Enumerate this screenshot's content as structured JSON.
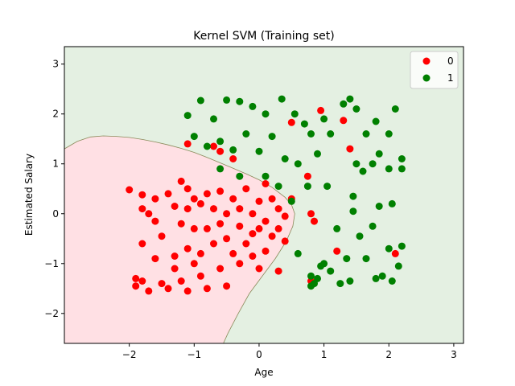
{
  "chart_data": {
    "type": "scatter",
    "title": "Kernel SVM (Training set)",
    "xlabel": "Age",
    "ylabel": "Estimated Salary",
    "xlim": [
      -3.0,
      3.15
    ],
    "ylim": [
      -2.6,
      3.35
    ],
    "xticks": [
      -2,
      -1,
      0,
      1,
      2,
      3
    ],
    "yticks": [
      -2,
      -1,
      0,
      1,
      2,
      3
    ],
    "xtick_labels": [
      "−2",
      "−1",
      "0",
      "1",
      "2",
      "3"
    ],
    "ytick_labels": [
      "−2",
      "−1",
      "0",
      "1",
      "2",
      "3"
    ],
    "grid": false,
    "legend_position": "top-right",
    "region_colors": {
      "class0": "#ffe0e4",
      "class1": "#e4f0e2",
      "boundary": "#8a8a5a"
    },
    "decision_boundary": [
      [
        -3.0,
        1.3
      ],
      [
        -2.8,
        1.45
      ],
      [
        -2.6,
        1.54
      ],
      [
        -2.4,
        1.56
      ],
      [
        -2.2,
        1.55
      ],
      [
        -2.0,
        1.53
      ],
      [
        -1.8,
        1.49
      ],
      [
        -1.6,
        1.44
      ],
      [
        -1.4,
        1.38
      ],
      [
        -1.2,
        1.31
      ],
      [
        -1.0,
        1.23
      ],
      [
        -0.8,
        1.13
      ],
      [
        -0.6,
        1.02
      ],
      [
        -0.4,
        0.91
      ],
      [
        -0.2,
        0.8
      ],
      [
        0.0,
        0.68
      ],
      [
        0.2,
        0.53
      ],
      [
        0.4,
        0.33
      ],
      [
        0.5,
        0.18
      ],
      [
        0.55,
        0.0
      ],
      [
        0.52,
        -0.25
      ],
      [
        0.42,
        -0.55
      ],
      [
        0.25,
        -0.9
      ],
      [
        0.05,
        -1.25
      ],
      [
        -0.15,
        -1.6
      ],
      [
        -0.32,
        -2.0
      ],
      [
        -0.48,
        -2.4
      ],
      [
        -0.55,
        -2.6
      ]
    ],
    "series": [
      {
        "name": "0",
        "color": "#ff0000",
        "points": [
          [
            -2.0,
            0.48
          ],
          [
            -1.9,
            -1.3
          ],
          [
            -1.9,
            -1.45
          ],
          [
            -1.8,
            0.38
          ],
          [
            -1.8,
            0.1
          ],
          [
            -1.8,
            -0.6
          ],
          [
            -1.8,
            -1.35
          ],
          [
            -1.7,
            0.0
          ],
          [
            -1.7,
            -1.55
          ],
          [
            -1.6,
            0.3
          ],
          [
            -1.6,
            -0.15
          ],
          [
            -1.6,
            -0.9
          ],
          [
            -1.5,
            -0.45
          ],
          [
            -1.5,
            -1.4
          ],
          [
            -1.4,
            0.4
          ],
          [
            -1.4,
            -1.5
          ],
          [
            -1.3,
            0.15
          ],
          [
            -1.3,
            -0.85
          ],
          [
            -1.3,
            -1.1
          ],
          [
            -1.2,
            0.65
          ],
          [
            -1.2,
            -0.2
          ],
          [
            -1.2,
            -1.35
          ],
          [
            -1.1,
            0.5
          ],
          [
            -1.1,
            0.1
          ],
          [
            -1.1,
            -0.7
          ],
          [
            -1.1,
            -1.55
          ],
          [
            -1.0,
            0.3
          ],
          [
            -1.0,
            -0.3
          ],
          [
            -1.0,
            -1.0
          ],
          [
            -0.9,
            0.2
          ],
          [
            -0.9,
            -0.8
          ],
          [
            -0.9,
            -1.25
          ],
          [
            -0.8,
            0.4
          ],
          [
            -0.8,
            -0.3
          ],
          [
            -0.8,
            -1.5
          ],
          [
            -0.7,
            0.1
          ],
          [
            -0.7,
            -0.6
          ],
          [
            -0.7,
            1.35
          ],
          [
            -0.6,
            0.45
          ],
          [
            -0.6,
            -0.2
          ],
          [
            -0.6,
            -1.1
          ],
          [
            -0.5,
            0.0
          ],
          [
            -0.5,
            -0.5
          ],
          [
            -0.5,
            -1.45
          ],
          [
            -0.4,
            0.3
          ],
          [
            -0.4,
            -0.8
          ],
          [
            -0.4,
            1.1
          ],
          [
            -0.3,
            0.1
          ],
          [
            -0.3,
            -0.25
          ],
          [
            -0.3,
            -1.0
          ],
          [
            -0.2,
            0.5
          ],
          [
            -0.2,
            -0.6
          ],
          [
            -0.1,
            0.0
          ],
          [
            -0.1,
            -0.4
          ],
          [
            -0.1,
            -0.85
          ],
          [
            0.0,
            0.25
          ],
          [
            0.0,
            -0.3
          ],
          [
            0.0,
            -1.1
          ],
          [
            0.1,
            0.6
          ],
          [
            0.1,
            -0.15
          ],
          [
            0.1,
            -0.75
          ],
          [
            0.2,
            0.3
          ],
          [
            0.2,
            -0.45
          ],
          [
            0.3,
            0.1
          ],
          [
            0.3,
            -0.3
          ],
          [
            0.3,
            -1.15
          ],
          [
            0.4,
            -0.05
          ],
          [
            0.4,
            -0.55
          ],
          [
            0.5,
            0.3
          ],
          [
            -1.1,
            1.4
          ],
          [
            -0.6,
            1.25
          ],
          [
            0.5,
            1.83
          ],
          [
            0.95,
            2.07
          ],
          [
            1.3,
            1.87
          ],
          [
            1.4,
            1.3
          ],
          [
            0.75,
            0.75
          ],
          [
            0.8,
            0.0
          ],
          [
            0.85,
            -0.15
          ],
          [
            1.2,
            -0.75
          ],
          [
            0.8,
            -1.35
          ],
          [
            2.1,
            -0.8
          ]
        ]
      },
      {
        "name": "1",
        "color": "#008000",
        "points": [
          [
            -1.1,
            1.97
          ],
          [
            -0.9,
            2.27
          ],
          [
            -0.7,
            1.9
          ],
          [
            -0.5,
            2.28
          ],
          [
            -0.3,
            2.25
          ],
          [
            -0.1,
            2.15
          ],
          [
            0.1,
            2.0
          ],
          [
            0.35,
            2.3
          ],
          [
            0.55,
            2.0
          ],
          [
            -1.0,
            1.55
          ],
          [
            -0.8,
            1.35
          ],
          [
            -0.6,
            1.45
          ],
          [
            -0.4,
            1.28
          ],
          [
            -0.2,
            1.6
          ],
          [
            0.0,
            1.25
          ],
          [
            0.2,
            1.55
          ],
          [
            0.4,
            1.1
          ],
          [
            0.6,
            1.0
          ],
          [
            0.7,
            1.8
          ],
          [
            0.8,
            1.6
          ],
          [
            0.9,
            1.2
          ],
          [
            1.0,
            1.9
          ],
          [
            1.1,
            1.6
          ],
          [
            1.3,
            2.2
          ],
          [
            1.4,
            2.3
          ],
          [
            1.5,
            2.1
          ],
          [
            1.65,
            1.6
          ],
          [
            1.8,
            1.85
          ],
          [
            2.0,
            1.6
          ],
          [
            2.1,
            2.1
          ],
          [
            1.5,
            1.0
          ],
          [
            1.6,
            0.85
          ],
          [
            1.75,
            1.0
          ],
          [
            1.85,
            1.2
          ],
          [
            2.0,
            0.9
          ],
          [
            2.2,
            1.1
          ],
          [
            -0.6,
            0.9
          ],
          [
            -0.3,
            0.75
          ],
          [
            0.1,
            0.75
          ],
          [
            0.3,
            0.55
          ],
          [
            0.5,
            0.25
          ],
          [
            0.6,
            -0.8
          ],
          [
            0.75,
            0.55
          ],
          [
            0.8,
            -1.45
          ],
          [
            0.9,
            -1.3
          ],
          [
            1.0,
            -1.0
          ],
          [
            1.05,
            0.55
          ],
          [
            1.1,
            -1.15
          ],
          [
            1.2,
            -0.3
          ],
          [
            1.25,
            -1.4
          ],
          [
            1.35,
            -0.9
          ],
          [
            1.45,
            0.35
          ],
          [
            1.55,
            -0.45
          ],
          [
            1.65,
            -0.9
          ],
          [
            1.75,
            -0.25
          ],
          [
            1.9,
            -1.25
          ],
          [
            2.0,
            -0.7
          ],
          [
            2.05,
            -1.35
          ],
          [
            2.15,
            -1.05
          ],
          [
            2.2,
            -0.65
          ],
          [
            1.45,
            0.05
          ],
          [
            1.85,
            0.15
          ],
          [
            2.05,
            0.2
          ],
          [
            2.2,
            0.9
          ],
          [
            0.8,
            -1.25
          ],
          [
            0.95,
            -1.05
          ],
          [
            0.85,
            -1.4
          ],
          [
            1.4,
            -1.35
          ],
          [
            1.8,
            -1.3
          ]
        ]
      }
    ]
  }
}
